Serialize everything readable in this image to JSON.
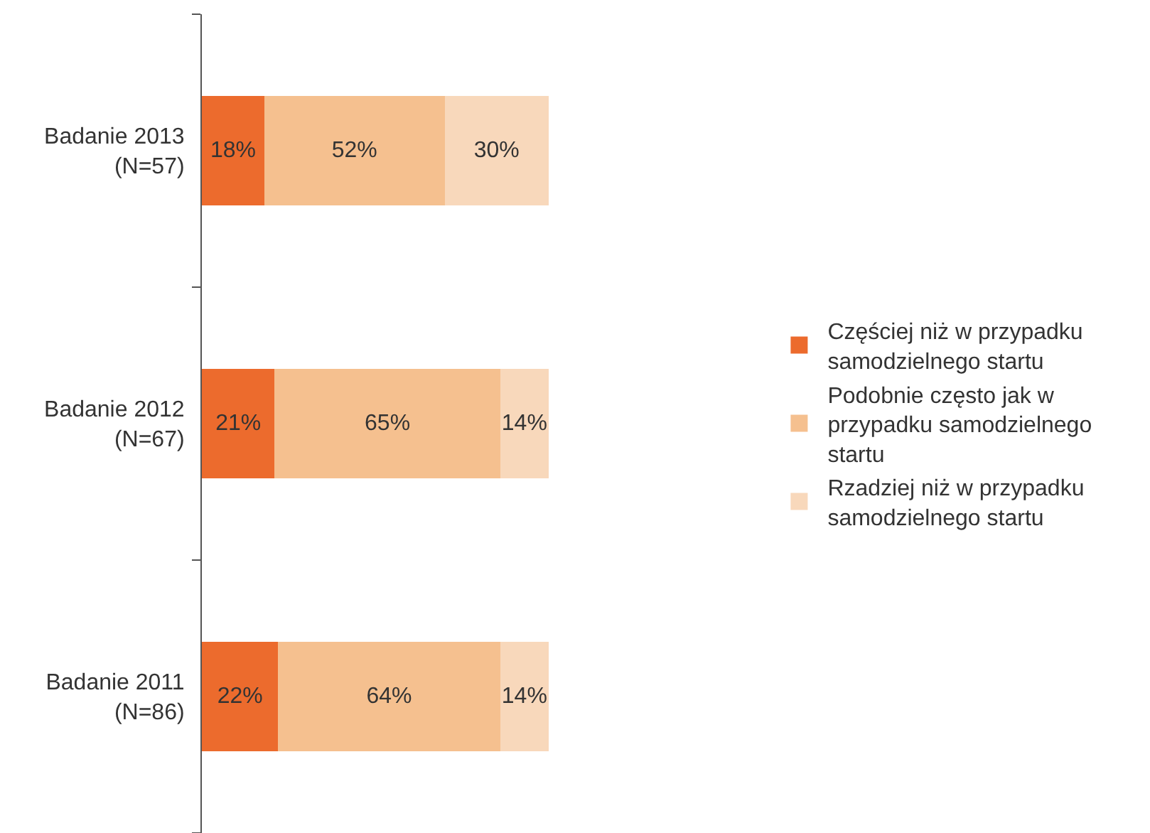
{
  "chart_data": {
    "type": "bar",
    "orientation": "horizontal",
    "stacked": true,
    "legend": "right",
    "tick_labels": "y",
    "categories": [
      "Badanie 2013 (N=57)",
      "Badanie 2012 (N=67)",
      "Badanie 2011 (N=86)"
    ],
    "series": [
      {
        "name": "Częściej niż w przypadku samodzielnego startu",
        "color": "#ec6b2d",
        "values": [
          18,
          21,
          22
        ],
        "value_labels": [
          "18%",
          "21%",
          "22%"
        ]
      },
      {
        "name": "Podobnie często jak w przypadku samodzielnego startu",
        "color": "#f5c08f",
        "values": [
          52,
          65,
          64
        ],
        "value_labels": [
          "52%",
          "65%",
          "64%"
        ]
      },
      {
        "name": "Rzadziej niż w przypadku samodzielnego startu",
        "color": "#f8d8bb",
        "values": [
          30,
          14,
          14
        ],
        "value_labels": [
          "30%",
          "14%",
          "14%"
        ]
      }
    ]
  }
}
